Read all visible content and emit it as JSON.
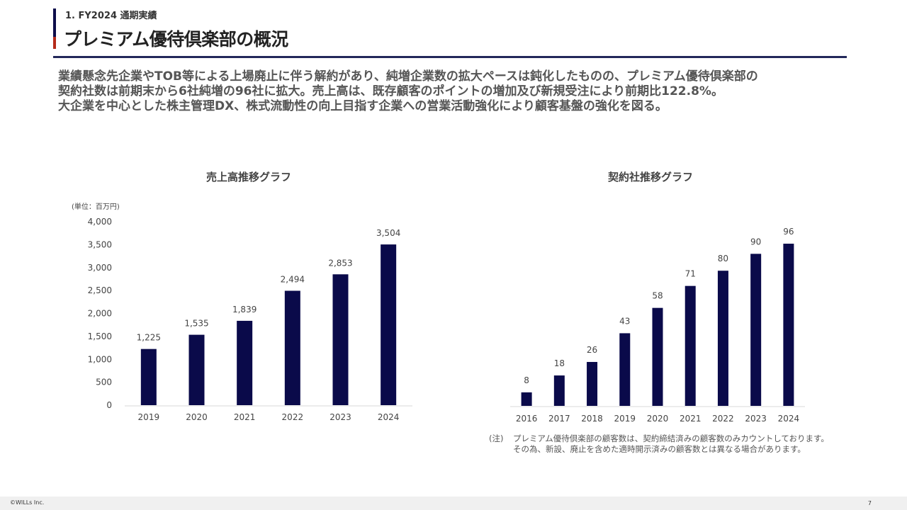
{
  "header": {
    "section_label": "1. FY2024 通期実績",
    "title": "プレミアム優待倶楽部の概況"
  },
  "summary": [
    "業績懸念先企業やTOB等による上場廃止に伴う解約があり、純増企業数の拡大ペースは鈍化したものの、プレミアム優待倶楽部の",
    "契約社数は前期末から6社純増の96社に拡大。売上高は、既存顧客のポイントの増加及び新規受注により前期比122.8%。",
    "大企業を中心とした株主管理DX、株式流動性の向上目指す企業への営業活動強化により顧客基盤の強化を図る。"
  ],
  "chart_data": [
    {
      "type": "bar",
      "title": "売上高推移グラフ",
      "unit_label": "(単位：百万円)",
      "categories": [
        "2019",
        "2020",
        "2021",
        "2022",
        "2023",
        "2024"
      ],
      "values": [
        1225,
        1535,
        1839,
        2494,
        2853,
        3504
      ],
      "data_labels": [
        "1,225",
        "1,535",
        "1,839",
        "2,494",
        "2,853",
        "3,504"
      ],
      "ylim": [
        0,
        4000
      ],
      "yticks": [
        0,
        500,
        1000,
        1500,
        2000,
        2500,
        3000,
        3500,
        4000
      ],
      "ytick_labels": [
        "0",
        "500",
        "1,000",
        "1,500",
        "2,000",
        "2,500",
        "3,000",
        "3,500",
        "4,000"
      ],
      "grid": false,
      "bar_color": "#0a0a4a"
    },
    {
      "type": "bar",
      "title": "契約社推移グラフ",
      "categories": [
        "2016",
        "2017",
        "2018",
        "2019",
        "2020",
        "2021",
        "2022",
        "2023",
        "2024"
      ],
      "values": [
        8,
        18,
        26,
        43,
        58,
        71,
        80,
        90,
        96
      ],
      "data_labels": [
        "8",
        "18",
        "26",
        "43",
        "58",
        "71",
        "80",
        "90",
        "96"
      ],
      "ylim": [
        0,
        100
      ],
      "grid": false,
      "bar_color": "#0a0a4a"
    }
  ],
  "note": {
    "mark": "(注)",
    "line1": "プレミアム優待倶楽部の顧客数は、契約締結済みの顧客数のみカウントしております。",
    "line2": "その為、新設、廃止を含めた適時開示済みの顧客数とは異なる場合があります。"
  },
  "footer": {
    "copyright": "©WILLs Inc.",
    "page_number": "7"
  }
}
